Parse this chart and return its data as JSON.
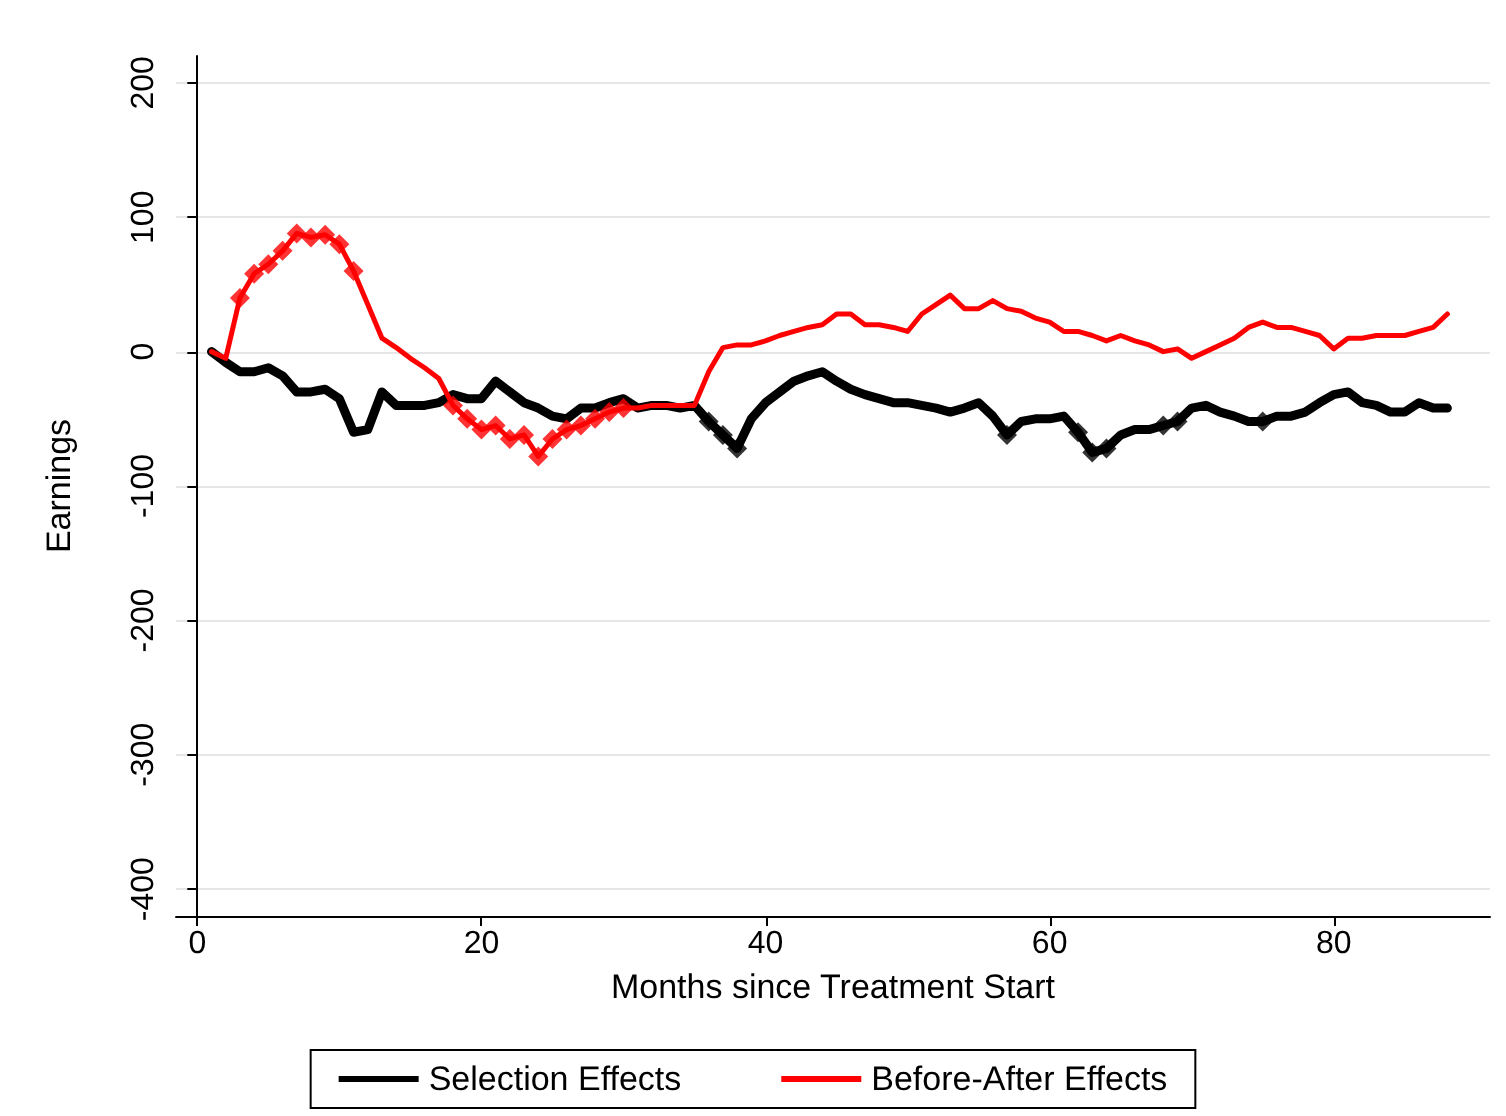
{
  "chart_data": {
    "type": "line",
    "xlabel": "Months since Treatment Start",
    "ylabel": "Earnings",
    "xlim": [
      -1.5,
      91
    ],
    "xticks": [
      0,
      20,
      40,
      60,
      80
    ],
    "ylim": [
      -420,
      220
    ],
    "yticks": [
      -400,
      -300,
      -200,
      -100,
      0,
      100,
      200
    ],
    "grid": "y",
    "legend": "bottom",
    "marker": "none",
    "line_style": "solid",
    "x": [
      1,
      2,
      3,
      4,
      5,
      6,
      7,
      8,
      9,
      10,
      11,
      12,
      13,
      14,
      15,
      16,
      17,
      18,
      19,
      20,
      21,
      22,
      23,
      24,
      25,
      26,
      27,
      28,
      29,
      30,
      31,
      32,
      33,
      34,
      35,
      36,
      37,
      38,
      39,
      40,
      41,
      42,
      43,
      44,
      45,
      46,
      47,
      48,
      49,
      50,
      51,
      52,
      53,
      54,
      55,
      56,
      57,
      58,
      59,
      60,
      61,
      62,
      63,
      64,
      65,
      66,
      67,
      68,
      69,
      70,
      71,
      72,
      73,
      74,
      75,
      76,
      77,
      78,
      79,
      80,
      81,
      82,
      83,
      84,
      85,
      86,
      87,
      88
    ],
    "series": [
      {
        "name": "Selection Effects",
        "color": "#000000",
        "values": [
          0,
          -8,
          -15,
          -15,
          -12,
          -18,
          -30,
          -30,
          -28,
          -35,
          -60,
          -58,
          -30,
          -40,
          -40,
          -40,
          -38,
          -32,
          -35,
          -35,
          -22,
          -30,
          -38,
          -42,
          -48,
          -50,
          -42,
          -42,
          -38,
          -35,
          -42,
          -40,
          -40,
          -42,
          -40,
          -52,
          -62,
          -72,
          -50,
          -38,
          -30,
          -22,
          -18,
          -15,
          -22,
          -28,
          -32,
          -35,
          -38,
          -38,
          -40,
          -42,
          -45,
          -42,
          -38,
          -48,
          -62,
          -52,
          -50,
          -50,
          -48,
          -60,
          -75,
          -72,
          -62,
          -58,
          -58,
          -55,
          -52,
          -42,
          -40,
          -45,
          -48,
          -52,
          -52,
          -48,
          -48,
          -45,
          -38,
          -32,
          -30,
          -38,
          -40,
          -45,
          -45,
          -38,
          -42,
          -42
        ]
      },
      {
        "name": "Before-After Effects",
        "color": "#ff0000",
        "values": [
          0,
          -5,
          40,
          58,
          65,
          75,
          88,
          85,
          87,
          80,
          60,
          35,
          10,
          3,
          -5,
          -12,
          -20,
          -40,
          -50,
          -58,
          -55,
          -65,
          -62,
          -78,
          -65,
          -58,
          -55,
          -50,
          -45,
          -42,
          -42,
          -40,
          -40,
          -40,
          -40,
          -15,
          3,
          5,
          5,
          8,
          12,
          15,
          18,
          20,
          28,
          28,
          20,
          20,
          18,
          15,
          28,
          35,
          42,
          32,
          32,
          38,
          32,
          30,
          25,
          22,
          15,
          15,
          12,
          8,
          12,
          8,
          5,
          0,
          2,
          -5,
          0,
          5,
          10,
          18,
          22,
          18,
          18,
          15,
          12,
          2,
          10,
          10,
          12,
          12,
          12,
          15,
          18,
          28
        ]
      },
      {
        "type": "scatter",
        "marker": "diamond",
        "color": "#000000",
        "x": [
          36,
          37,
          38,
          57,
          62,
          63,
          64,
          68,
          69,
          75
        ],
        "values": [
          -52,
          -62,
          -72,
          -62,
          -60,
          -75,
          -72,
          -55,
          -52,
          -52
        ]
      },
      {
        "type": "scatter",
        "marker": "diamond",
        "color": "#ff0000",
        "x": [
          3,
          4,
          5,
          6,
          7,
          8,
          9,
          10,
          11,
          18,
          19,
          20,
          21,
          22,
          23,
          24,
          25,
          26,
          27,
          28,
          29,
          30
        ],
        "values": [
          40,
          58,
          65,
          75,
          88,
          85,
          87,
          80,
          60,
          -40,
          -50,
          -58,
          -55,
          -65,
          -62,
          -78,
          -65,
          -58,
          -55,
          -50,
          -45,
          -42
        ]
      }
    ]
  }
}
